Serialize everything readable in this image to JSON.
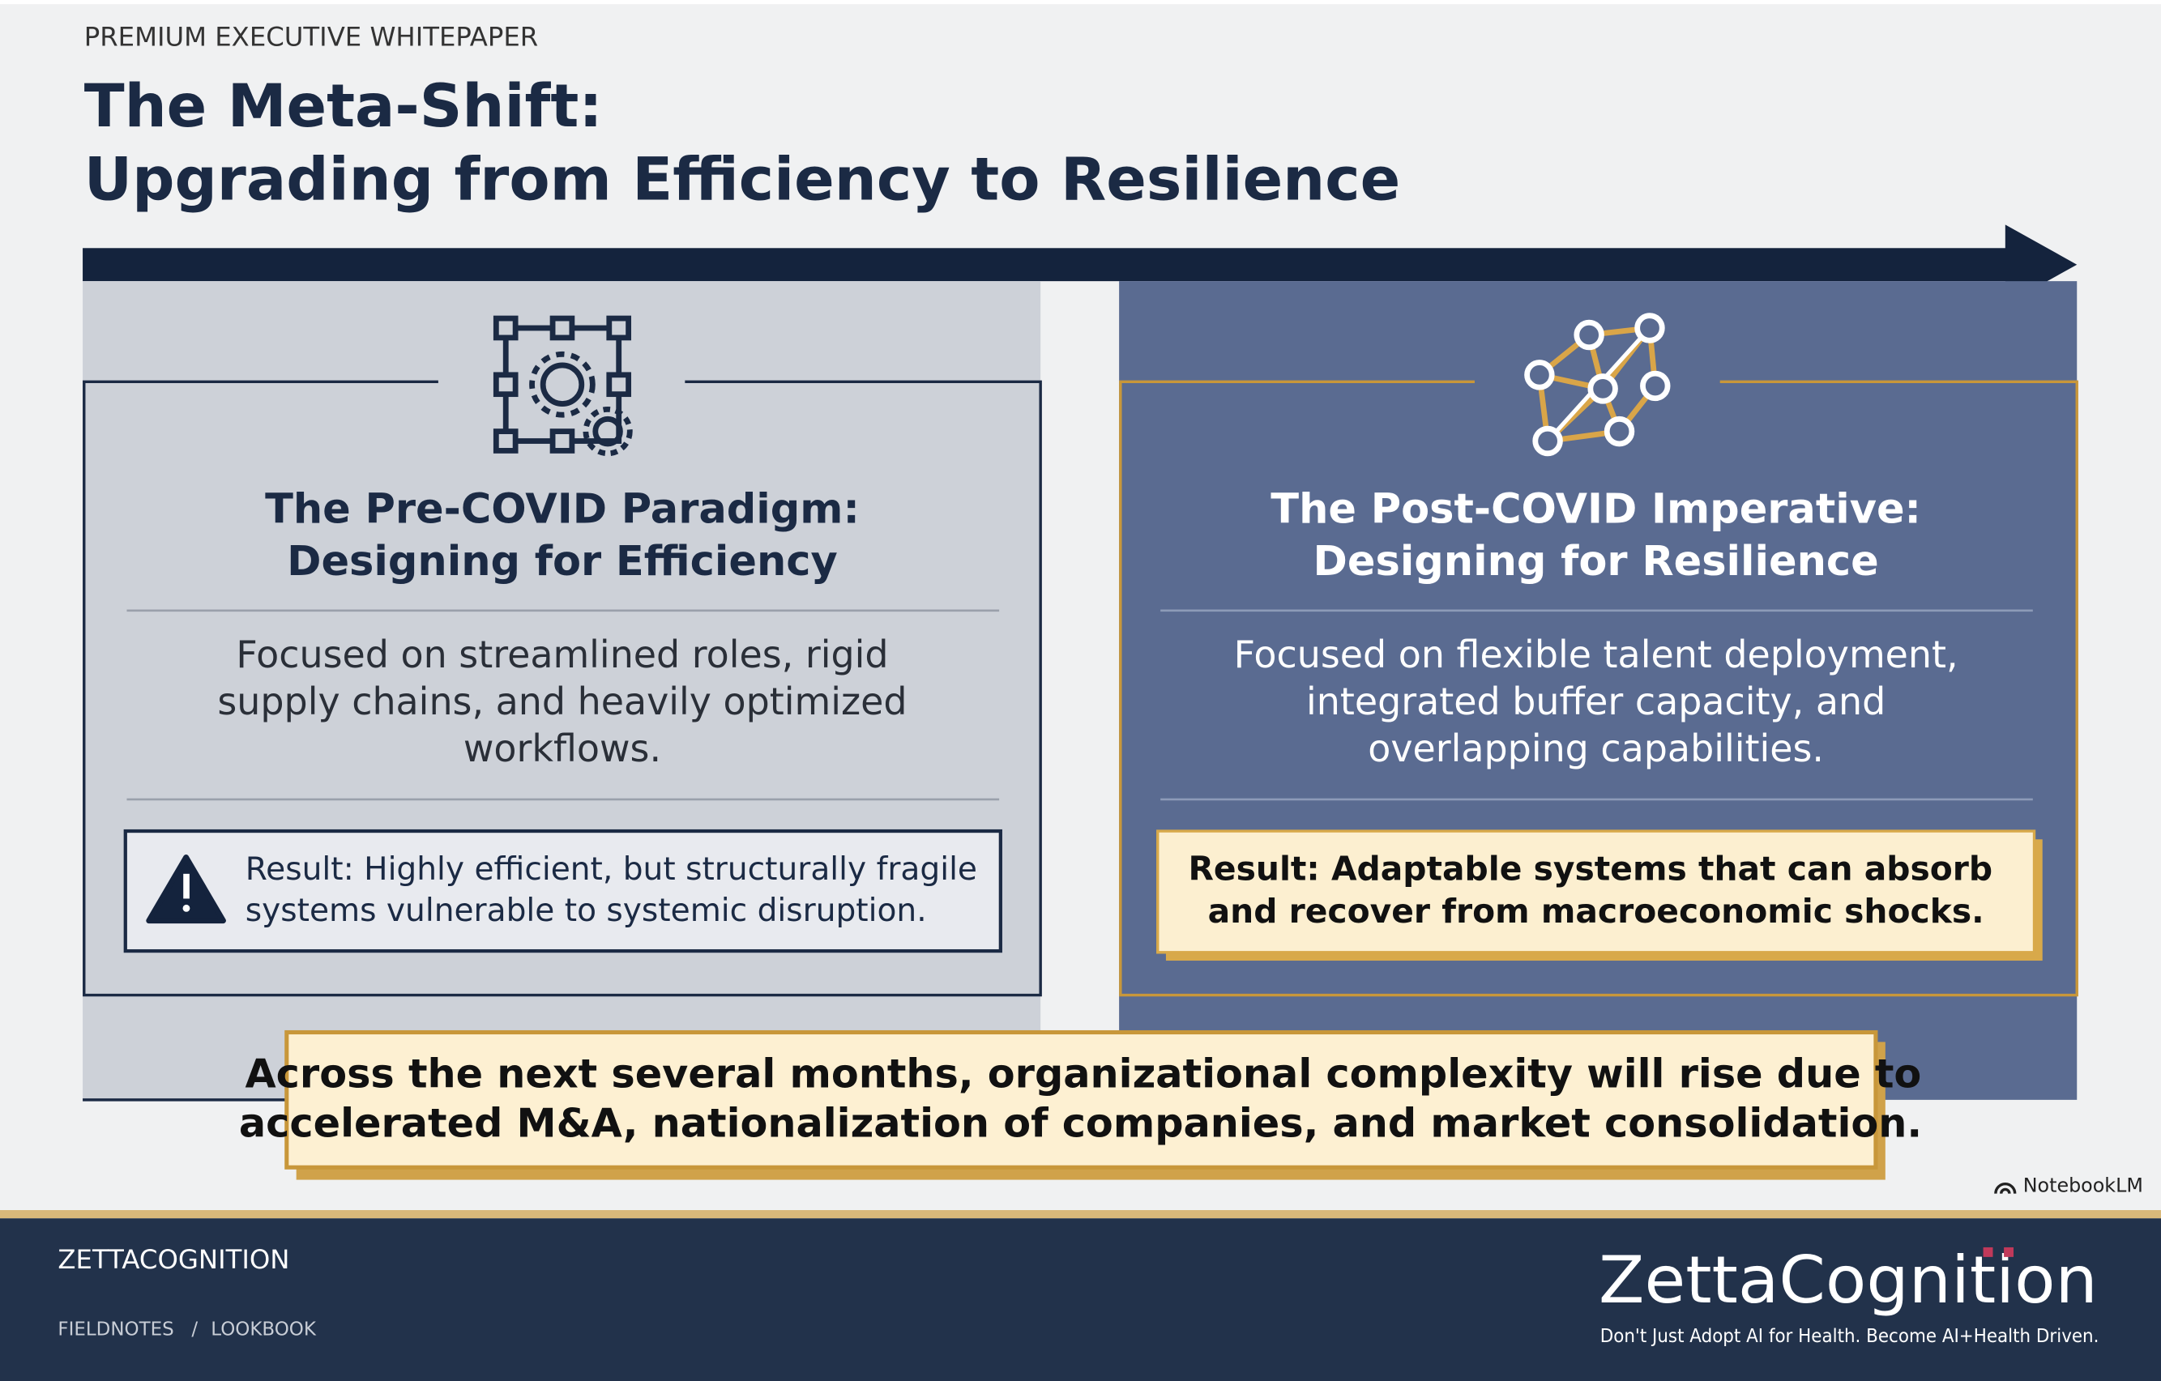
{
  "header": {
    "eyebrow": "PREMIUM EXECUTIVE WHITEPAPER",
    "title_lines": [
      "The Meta-Shift:",
      "Upgrading from Efficiency to Resilience"
    ]
  },
  "panels": [
    {
      "title_lines": [
        "The Pre-COVID Paradigm:",
        "Designing for Efficiency"
      ],
      "body_lines": [
        "Focused on streamlined roles, rigid",
        "supply chains, and heavily optimized",
        "workflows."
      ],
      "result_lines": [
        "Result: Highly efficient, but structurally fragile",
        "systems vulnerable to systemic disruption."
      ]
    },
    {
      "title_lines": [
        "The Post-COVID Imperative:",
        "Designing for Resilience"
      ],
      "body_lines": [
        "Focused on flexible talent deployment,",
        "integrated buffer capacity, and",
        "overlapping capabilities."
      ],
      "result_lines": [
        "Result: Adaptable systems that can absorb",
        "and recover from macroeconomic shocks."
      ]
    }
  ],
  "callout_lines": [
    "Across the next several months, organizational complexity will rise due to",
    "accelerated M&A, nationalization of companies, and market consolidation."
  ],
  "watermark": "NotebookLM",
  "footer": {
    "brand": "ZETTACOGNITION",
    "nav": [
      "FIELDNOTES",
      "LOOKBOOK"
    ],
    "separator": "/",
    "logo": "ZettaCognition",
    "tagline": "Don't Just Adopt AI for Health. Become AI+Health Driven."
  }
}
